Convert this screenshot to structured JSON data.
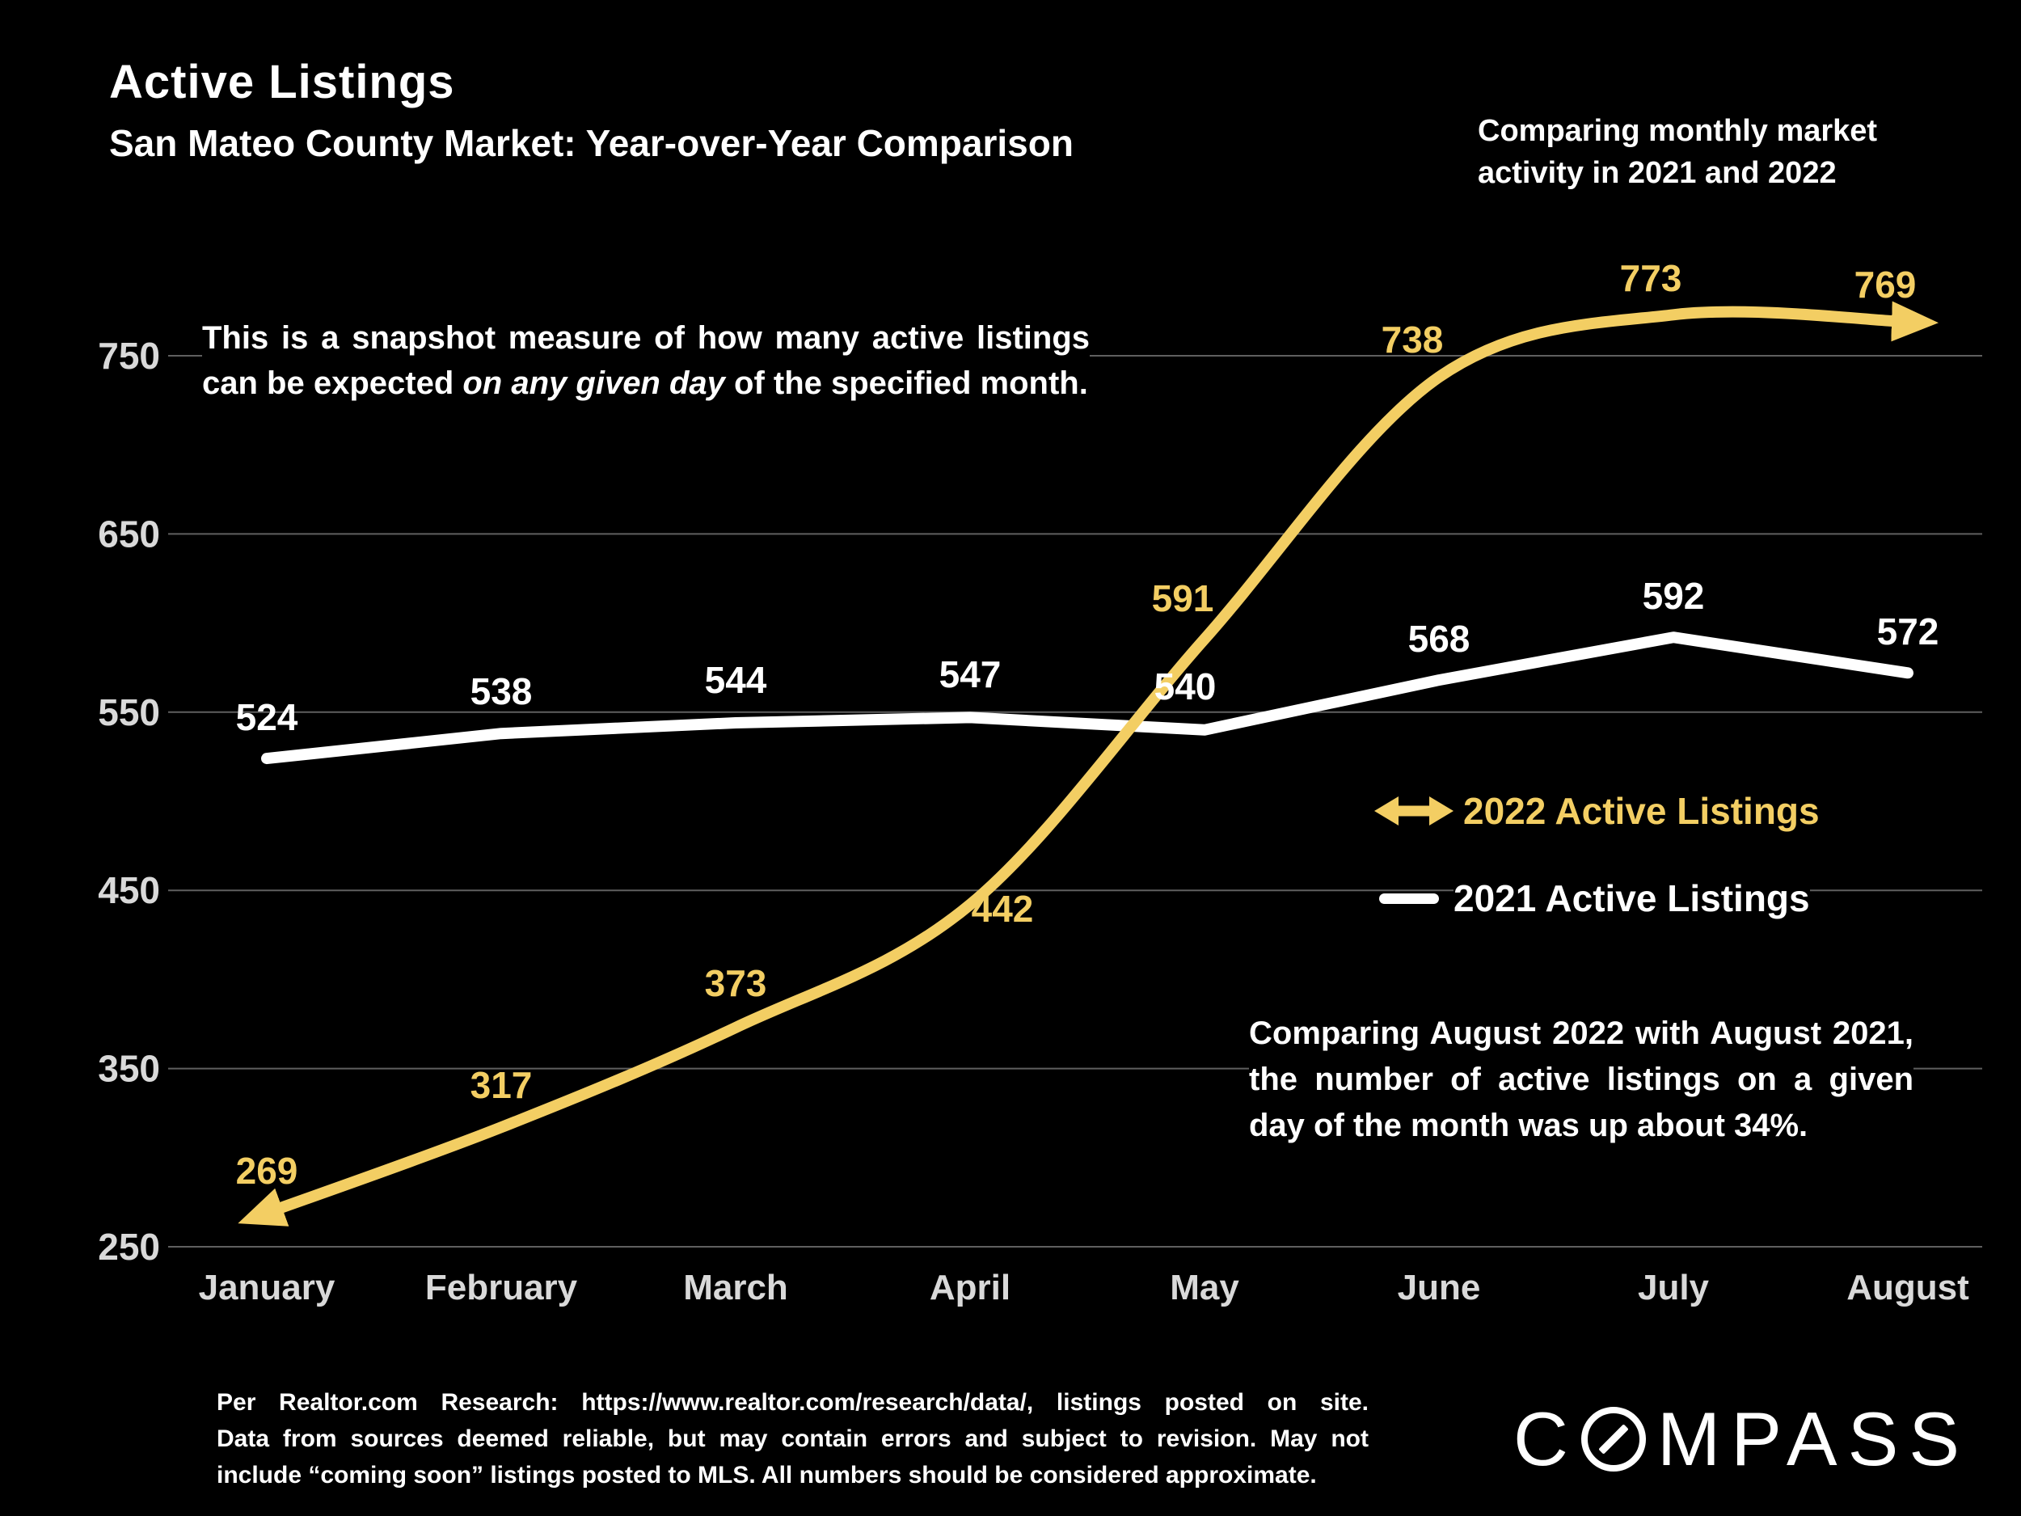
{
  "colors": {
    "gold": "#F3CE63",
    "white": "#FFFFFF",
    "grid": "#5F5F5F",
    "axis_text": "#D9D9D9",
    "background": "#000000"
  },
  "header": {
    "title": "Active Listings",
    "subtitle": "San Mateo County Market: Year-over-Year Comparison",
    "note_lines": [
      "Comparing monthly market",
      "activity in 2021 and 2022"
    ]
  },
  "annotations": {
    "snapshot_line1": "This is a snapshot measure of how many active listings",
    "snapshot_line2_pre": "can be expected ",
    "snapshot_line2_italic": "on any given day",
    "snapshot_line2_post": " of the specified month.",
    "comparison_lines": [
      "Comparing August 2022 with August 2021,",
      "the number of active listings on a given",
      "day of the month was up about 34%."
    ]
  },
  "legend": [
    {
      "label": "2022 Active Listings",
      "color": "#F3CE63",
      "symbol": "double-arrow"
    },
    {
      "label": "2021 Active Listings",
      "color": "#FFFFFF",
      "symbol": "line"
    }
  ],
  "footer": {
    "disclaimer_lines": [
      "Per Realtor.com Research:  https://www.realtor.com/research/data/, listings posted on site.",
      "Data from sources deemed reliable, but may contain errors and subject to revision. May not",
      "include “coming soon” listings posted to MLS. All numbers should be considered approximate."
    ],
    "logo_parts": [
      "C",
      "MPASS"
    ]
  },
  "chart_data": {
    "type": "line",
    "title": "Active Listings — San Mateo County Market: Year-over-Year Comparison",
    "x": [
      "January",
      "February",
      "March",
      "April",
      "May",
      "June",
      "July",
      "August"
    ],
    "series": [
      {
        "name": "2022 Active Listings",
        "color": "#F3CE63",
        "style": "smooth-arrow",
        "values": [
          269,
          317,
          373,
          442,
          591,
          738,
          773,
          769
        ]
      },
      {
        "name": "2021 Active Listings",
        "color": "#FFFFFF",
        "style": "straight",
        "values": [
          524,
          538,
          544,
          547,
          540,
          568,
          592,
          572
        ]
      }
    ],
    "xlabel": "",
    "ylabel": "",
    "ylim": [
      250,
      800
    ],
    "yticks": [
      750,
      650,
      550,
      450,
      350,
      250
    ],
    "grid": true,
    "legend_position": "right-middle"
  }
}
